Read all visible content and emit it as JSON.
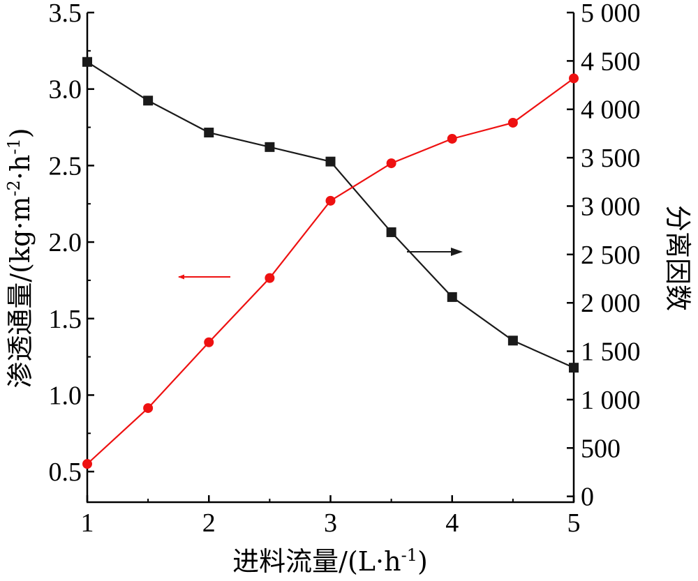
{
  "chart_data": {
    "type": "line",
    "xlabel": "进料流量/(L·h",
    "xlabel_sup": "-1",
    "xlabel_close": ")",
    "ylabel_left": "渗透通量/(kg·m",
    "ylabel_left_sup1": "-2",
    "ylabel_left_mid": "·h",
    "ylabel_left_sup2": "-1",
    "ylabel_left_close": ")",
    "ylabel_right": "分离因数",
    "xlim": [
      1,
      5
    ],
    "ylim_left": [
      0.3,
      3.5
    ],
    "ylim_right": [
      -60,
      5000
    ],
    "x_ticks": [
      "1",
      "2",
      "3",
      "4",
      "5"
    ],
    "y_left_ticks": [
      "0.5",
      "1.0",
      "1.5",
      "2.0",
      "2.5",
      "3.0",
      "3.5"
    ],
    "y_right_ticks": [
      "0",
      "500",
      "1 000",
      "1 500",
      "2 000",
      "2 500",
      "3 000",
      "3 500",
      "4 000",
      "4 500",
      "5 000"
    ],
    "grid": false,
    "series": [
      {
        "axis": "right",
        "color": "#1a1a1a",
        "marker": "square",
        "x": [
          1,
          1.5,
          2,
          2.5,
          3,
          3.5,
          4,
          4.5,
          5
        ],
        "values": [
          4490,
          4090,
          3760,
          3610,
          3460,
          2730,
          2060,
          1610,
          1330
        ]
      },
      {
        "axis": "left",
        "color": "#ee1111",
        "marker": "circle",
        "x": [
          1,
          1.5,
          2,
          2.5,
          3,
          3.5,
          4,
          4.5,
          5
        ],
        "values": [
          0.55,
          0.915,
          1.345,
          1.765,
          2.27,
          2.515,
          2.675,
          2.78,
          3.07
        ]
      }
    ],
    "annotations": [
      {
        "type": "arrow",
        "direction": "left",
        "points_to": "left-axis",
        "color": "#ee1111"
      },
      {
        "type": "arrow",
        "direction": "right",
        "points_to": "right-axis",
        "color": "#1a1a1a"
      }
    ]
  }
}
